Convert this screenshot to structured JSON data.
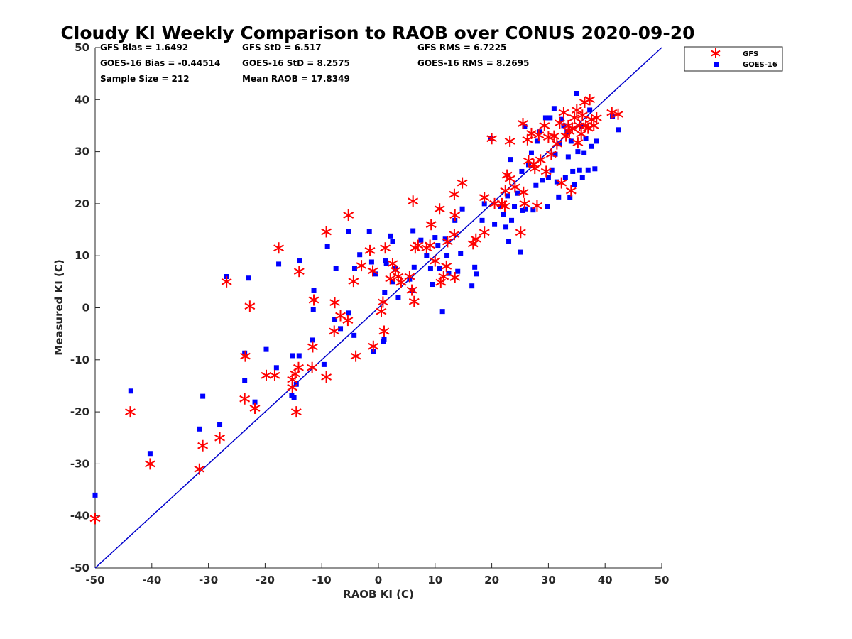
{
  "chart_data": {
    "type": "scatter",
    "title": "Cloudy KI Weekly Comparison to RAOB over CONUS 2020-09-20",
    "xlabel": "RAOB KI (C)",
    "ylabel": "Measured KI (C)",
    "xlim": [
      -50,
      50
    ],
    "ylim": [
      -50,
      50
    ],
    "xticks": [
      "-50",
      "-40",
      "-30",
      "-20",
      "-10",
      "0",
      "10",
      "20",
      "30",
      "40",
      "50"
    ],
    "yticks": [
      "-50",
      "-40",
      "-30",
      "-20",
      "-10",
      "0",
      "10",
      "20",
      "30",
      "40",
      "50"
    ],
    "grid": false,
    "legend_position": "top-right",
    "reference_line": {
      "from": [
        -50,
        -50
      ],
      "to": [
        50,
        50
      ],
      "color": "#0000cc"
    },
    "stats": [
      [
        "GFS Bias = 1.6492",
        "GFS StD = 6.517",
        "GFS RMS = 6.7225"
      ],
      [
        "GOES-16 Bias = -0.44514",
        "GOES-16 StD = 8.2575",
        "GOES-16 RMS = 8.2695"
      ],
      [
        "Sample Size = 212",
        "Mean RAOB = 17.8349",
        ""
      ]
    ],
    "series": [
      {
        "name": "GFS",
        "marker": "asterisk",
        "color": "#ff0000",
        "points": [
          [
            -50,
            -40.5
          ],
          [
            -43.8,
            -20
          ],
          [
            -40.3,
            -30
          ],
          [
            -31.6,
            -31
          ],
          [
            -31,
            -26.5
          ],
          [
            -28,
            -25
          ],
          [
            -26.8,
            5
          ],
          [
            -22.7,
            0.3
          ],
          [
            -23.5,
            -9.3
          ],
          [
            -23.6,
            -17.5
          ],
          [
            -21.8,
            -19.3
          ],
          [
            -19.8,
            -13
          ],
          [
            -18.3,
            -13
          ],
          [
            -17.6,
            11.5
          ],
          [
            -15.2,
            -13.8
          ],
          [
            -15.2,
            -15.3
          ],
          [
            -14.7,
            -12.7
          ],
          [
            -14.5,
            -20
          ],
          [
            -14.1,
            -11.5
          ],
          [
            -14,
            7
          ],
          [
            -11.6,
            -7.5
          ],
          [
            -11.4,
            1.5
          ],
          [
            -11.7,
            -11.5
          ],
          [
            -9.2,
            -13.3
          ],
          [
            -9.2,
            14.6
          ],
          [
            -7.7,
            1
          ],
          [
            -7.8,
            -4.5
          ],
          [
            -6.7,
            -1.5
          ],
          [
            -5.4,
            -2.4
          ],
          [
            -5.3,
            17.8
          ],
          [
            -4.4,
            5.1
          ],
          [
            -4,
            -9.3
          ],
          [
            -3,
            8.1
          ],
          [
            -1.5,
            11
          ],
          [
            -1,
            7.1
          ],
          [
            -0.9,
            -7.4
          ],
          [
            0.5,
            -0.7
          ],
          [
            0.8,
            1.1
          ],
          [
            1,
            -4.5
          ],
          [
            1.2,
            11.5
          ],
          [
            2.1,
            5.6
          ],
          [
            2.5,
            8.5
          ],
          [
            3,
            7.2
          ],
          [
            3.5,
            6
          ],
          [
            4,
            4.9
          ],
          [
            5.5,
            6
          ],
          [
            5.9,
            3.4
          ],
          [
            6.1,
            20.5
          ],
          [
            6.3,
            1.2
          ],
          [
            6.5,
            11.5
          ],
          [
            7,
            12
          ],
          [
            8.5,
            11.5
          ],
          [
            9.1,
            12
          ],
          [
            9.3,
            16
          ],
          [
            10,
            9
          ],
          [
            10.8,
            19
          ],
          [
            11,
            4.9
          ],
          [
            11.5,
            6
          ],
          [
            12,
            8
          ],
          [
            12.2,
            12.7
          ],
          [
            13.4,
            21.8
          ],
          [
            13.5,
            17.8
          ],
          [
            13.4,
            14.1
          ],
          [
            13.5,
            5.8
          ],
          [
            14.8,
            24
          ],
          [
            16.7,
            12.3
          ],
          [
            17.2,
            13.2
          ],
          [
            18.7,
            14.5
          ],
          [
            18.7,
            21.2
          ],
          [
            20,
            32.5
          ],
          [
            20.5,
            20
          ],
          [
            21.8,
            20
          ],
          [
            22.3,
            19.5
          ],
          [
            22.4,
            22.5
          ],
          [
            22.7,
            25.5
          ],
          [
            23.2,
            24.8
          ],
          [
            23.2,
            32
          ],
          [
            24.1,
            23.2
          ],
          [
            25.1,
            14.5
          ],
          [
            25.5,
            35.4
          ],
          [
            25.6,
            22.2
          ],
          [
            25.8,
            20
          ],
          [
            26.3,
            32.3
          ],
          [
            26.5,
            28.2
          ],
          [
            27,
            33.5
          ],
          [
            27.4,
            27.5
          ],
          [
            27.6,
            26.8
          ],
          [
            28,
            19.6
          ],
          [
            28.3,
            33.2
          ],
          [
            28.6,
            28.4
          ],
          [
            29.3,
            35
          ],
          [
            29.6,
            26.2
          ],
          [
            30,
            32.8
          ],
          [
            30.5,
            29.5
          ],
          [
            31,
            33
          ],
          [
            31.5,
            31.5
          ],
          [
            32,
            35.5
          ],
          [
            32.3,
            24
          ],
          [
            32.7,
            37.5
          ],
          [
            33.1,
            33
          ],
          [
            33.5,
            35
          ],
          [
            33.7,
            33.9
          ],
          [
            34,
            22.5
          ],
          [
            34.2,
            34.5
          ],
          [
            34.6,
            36.5
          ],
          [
            35,
            38
          ],
          [
            35.2,
            31.7
          ],
          [
            35.5,
            35
          ],
          [
            35.8,
            33.4
          ],
          [
            36,
            37
          ],
          [
            36.4,
            39.5
          ],
          [
            36.6,
            35
          ],
          [
            37,
            34.5
          ],
          [
            37.3,
            40
          ],
          [
            37.6,
            36.2
          ],
          [
            38,
            35
          ],
          [
            38.5,
            36.5
          ],
          [
            41.2,
            37.5
          ],
          [
            42.3,
            37.2
          ]
        ]
      },
      {
        "name": "GOES-16",
        "marker": "square",
        "color": "#0000ff",
        "points": [
          [
            -50,
            -36
          ],
          [
            -43.7,
            -16
          ],
          [
            -40.3,
            -28
          ],
          [
            -31.6,
            -23.3
          ],
          [
            -31,
            -17
          ],
          [
            -28,
            -22.5
          ],
          [
            -26.8,
            6
          ],
          [
            -23.6,
            -8.7
          ],
          [
            -23.6,
            -14
          ],
          [
            -22.9,
            5.7
          ],
          [
            -21.8,
            -18.1
          ],
          [
            -19.8,
            -8
          ],
          [
            -18,
            -11.5
          ],
          [
            -17.6,
            8.4
          ],
          [
            -15.3,
            -16.8
          ],
          [
            -15.2,
            -9.2
          ],
          [
            -14.9,
            -17.3
          ],
          [
            -14.5,
            -14.7
          ],
          [
            -14,
            -9.2
          ],
          [
            -13.9,
            9
          ],
          [
            -11.6,
            -6.2
          ],
          [
            -11.5,
            -0.3
          ],
          [
            -11.4,
            3.3
          ],
          [
            -9.6,
            -10.9
          ],
          [
            -9,
            11.8
          ],
          [
            -7.7,
            -2.3
          ],
          [
            -7.5,
            7.6
          ],
          [
            -6.7,
            -4
          ],
          [
            -5.3,
            14.6
          ],
          [
            -5.2,
            -1
          ],
          [
            -4.3,
            -5.3
          ],
          [
            -4.2,
            7.6
          ],
          [
            -3.3,
            10.2
          ],
          [
            -1.6,
            14.6
          ],
          [
            -1.2,
            8.8
          ],
          [
            -0.9,
            -8.4
          ],
          [
            -0.5,
            6.5
          ],
          [
            0.9,
            -6.5
          ],
          [
            1,
            -6
          ],
          [
            1.1,
            3
          ],
          [
            1.2,
            9
          ],
          [
            1.4,
            8.5
          ],
          [
            2.1,
            13.8
          ],
          [
            2.5,
            12.8
          ],
          [
            2.5,
            5
          ],
          [
            3,
            7.5
          ],
          [
            3.5,
            2
          ],
          [
            5.5,
            5.5
          ],
          [
            6,
            3.3
          ],
          [
            6.1,
            14.8
          ],
          [
            6.3,
            7.8
          ],
          [
            7.5,
            13
          ],
          [
            8.5,
            10
          ],
          [
            9.2,
            7.5
          ],
          [
            9.5,
            4.5
          ],
          [
            10,
            13.5
          ],
          [
            10.5,
            12
          ],
          [
            10.8,
            7.5
          ],
          [
            11.3,
            -0.7
          ],
          [
            11.8,
            13.2
          ],
          [
            12.1,
            10
          ],
          [
            12.4,
            6.6
          ],
          [
            13.5,
            16.8
          ],
          [
            14,
            7
          ],
          [
            14.5,
            10.5
          ],
          [
            14.8,
            19
          ],
          [
            16.5,
            4.2
          ],
          [
            17,
            7.8
          ],
          [
            17.3,
            6.5
          ],
          [
            18.3,
            16.8
          ],
          [
            18.7,
            20
          ],
          [
            19.8,
            32.5
          ],
          [
            20.5,
            16
          ],
          [
            21.5,
            19.5
          ],
          [
            22,
            18
          ],
          [
            22.5,
            15.5
          ],
          [
            22.8,
            21.5
          ],
          [
            23,
            12.7
          ],
          [
            23.3,
            28.5
          ],
          [
            23.5,
            16.8
          ],
          [
            24,
            19.5
          ],
          [
            24.5,
            22
          ],
          [
            25,
            10.7
          ],
          [
            25.3,
            26.2
          ],
          [
            25.5,
            18.7
          ],
          [
            25.8,
            34.8
          ],
          [
            26,
            19
          ],
          [
            26.5,
            27.5
          ],
          [
            27,
            29.8
          ],
          [
            27.3,
            18.8
          ],
          [
            27.8,
            23.5
          ],
          [
            28,
            32
          ],
          [
            28.5,
            33.8
          ],
          [
            29,
            24.5
          ],
          [
            29.5,
            36.5
          ],
          [
            29.8,
            19.5
          ],
          [
            30,
            25
          ],
          [
            30.3,
            36.5
          ],
          [
            30.6,
            26.5
          ],
          [
            31,
            38.3
          ],
          [
            31.2,
            29.5
          ],
          [
            31.5,
            24.2
          ],
          [
            31.8,
            21.3
          ],
          [
            32,
            31.5
          ],
          [
            32.3,
            36.2
          ],
          [
            32.7,
            35
          ],
          [
            33,
            25
          ],
          [
            33.3,
            33.8
          ],
          [
            33.5,
            29
          ],
          [
            33.8,
            21.2
          ],
          [
            34,
            32
          ],
          [
            34.3,
            26.2
          ],
          [
            34.6,
            23.7
          ],
          [
            35,
            41.2
          ],
          [
            35.2,
            30
          ],
          [
            35.5,
            26.5
          ],
          [
            35.8,
            34.8
          ],
          [
            36,
            25
          ],
          [
            36.3,
            29.8
          ],
          [
            36.6,
            32.5
          ],
          [
            37,
            26.5
          ],
          [
            37.3,
            38
          ],
          [
            37.6,
            31
          ],
          [
            38.2,
            26.7
          ],
          [
            38.5,
            32
          ],
          [
            41.3,
            36.8
          ],
          [
            42.3,
            34.2
          ]
        ]
      }
    ]
  }
}
